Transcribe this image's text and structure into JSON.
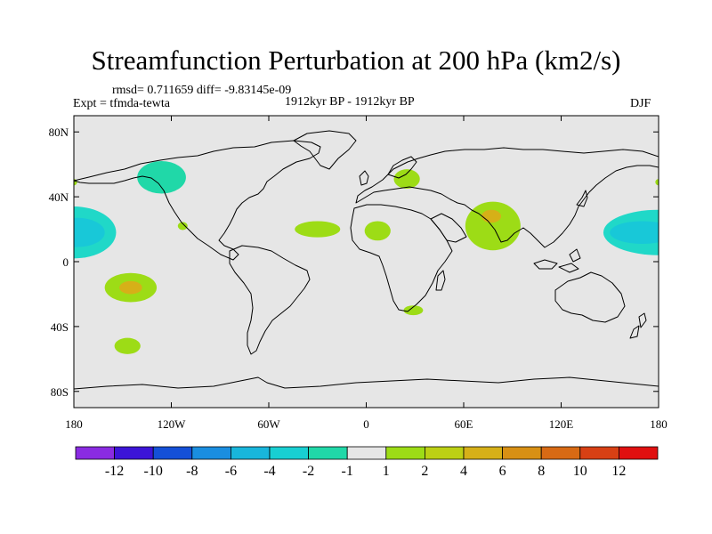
{
  "title": "Streamfunction Perturbation at 200 hPa (km2/s)",
  "stats": "rmsd= 0.711659 diff= -9.83145e-09",
  "experiment": "Expt = tfmda-tewta",
  "period": "1912kyr BP - 1912kyr BP",
  "season": "DJF",
  "map": {
    "background": "#e6e6e6",
    "lat_ticks": [
      {
        "lat": 80,
        "label": "80N"
      },
      {
        "lat": 40,
        "label": "40N"
      },
      {
        "lat": 0,
        "label": "0"
      },
      {
        "lat": -40,
        "label": "40S"
      },
      {
        "lat": -80,
        "label": "80S"
      }
    ],
    "lon_ticks": [
      {
        "lon": -180,
        "label": "180"
      },
      {
        "lon": -120,
        "label": "120W"
      },
      {
        "lon": -60,
        "label": "60W"
      },
      {
        "lon": 0,
        "label": "0"
      },
      {
        "lon": 60,
        "label": "60E"
      },
      {
        "lon": 120,
        "label": "120E"
      },
      {
        "lon": 180,
        "label": "180"
      }
    ],
    "anomalies": [
      {
        "name": "pacific-north-negative",
        "lon": -180,
        "lat": 18,
        "rlon": 26,
        "rlat": 16,
        "color": "#20d8c8"
      },
      {
        "name": "pacific-north-negative-inner",
        "lon": -178,
        "lat": 18,
        "rlon": 17,
        "rlat": 9,
        "color": "#18c8d8"
      },
      {
        "name": "dateline-west-negative",
        "lon": 180,
        "lat": 18,
        "rlon": 34,
        "rlat": 14,
        "color": "#20d8c8"
      },
      {
        "name": "dateline-west-negative-inner",
        "lon": 170,
        "lat": 18,
        "rlon": 20,
        "rlat": 7,
        "color": "#18c8d8"
      },
      {
        "name": "canada-negative",
        "lon": -126,
        "lat": 52,
        "rlon": 15,
        "rlat": 10,
        "color": "#20d8a8"
      },
      {
        "name": "south-pacific-positive",
        "lon": -145,
        "lat": -16,
        "rlon": 16,
        "rlat": 9,
        "color": "#9ddc16"
      },
      {
        "name": "south-pacific-positive-inner",
        "lon": -145,
        "lat": -16,
        "rlon": 7,
        "rlat": 4,
        "color": "#d6b018"
      },
      {
        "name": "southern-ocean-positive",
        "lon": -147,
        "lat": -52,
        "rlon": 8,
        "rlat": 5,
        "color": "#9ddc16"
      },
      {
        "name": "atlantic-positive",
        "lon": -30,
        "lat": 20,
        "rlon": 14,
        "rlat": 5,
        "color": "#9ddc16"
      },
      {
        "name": "sahara-positive",
        "lon": 7,
        "lat": 19,
        "rlon": 8,
        "rlat": 6,
        "color": "#9ddc16"
      },
      {
        "name": "europe-positive",
        "lon": 25,
        "lat": 51,
        "rlon": 8,
        "rlat": 6,
        "color": "#9ddc16"
      },
      {
        "name": "south-asia-positive",
        "lon": 78,
        "lat": 22,
        "rlon": 17,
        "rlat": 15,
        "color": "#9ddc16"
      },
      {
        "name": "south-asia-positive-inner",
        "lon": 77,
        "lat": 28,
        "rlon": 6,
        "rlat": 4,
        "color": "#d6b018"
      },
      {
        "name": "south-africa-positive",
        "lon": 29,
        "lat": -30,
        "rlon": 6,
        "rlat": 3,
        "color": "#9ddc16"
      },
      {
        "name": "mexico-positive",
        "lon": -113,
        "lat": 22,
        "rlon": 3,
        "rlat": 2.5,
        "color": "#9ddc16"
      },
      {
        "name": "eastern-edge-positive",
        "lon": 180,
        "lat": 49,
        "rlon": 2,
        "rlat": 2,
        "color": "#9ddc16"
      },
      {
        "name": "western-edge-positive",
        "lon": -180,
        "lat": 49,
        "rlon": 2,
        "rlat": 2,
        "color": "#9ddc16"
      }
    ]
  },
  "colorbar": {
    "colors": [
      "#8a2be2",
      "#3c14d8",
      "#1450d8",
      "#1a8ee0",
      "#18b6dc",
      "#18cfd2",
      "#20d8a8",
      "#e6e6e6",
      "#9ddc16",
      "#bcd014",
      "#d6b018",
      "#d89014",
      "#d86a14",
      "#d84014",
      "#e01010"
    ],
    "labels": [
      "-12",
      "-10",
      "-8",
      "-6",
      "-4",
      "-2",
      "-1",
      "1",
      "2",
      "4",
      "6",
      "8",
      "10",
      "12"
    ]
  }
}
